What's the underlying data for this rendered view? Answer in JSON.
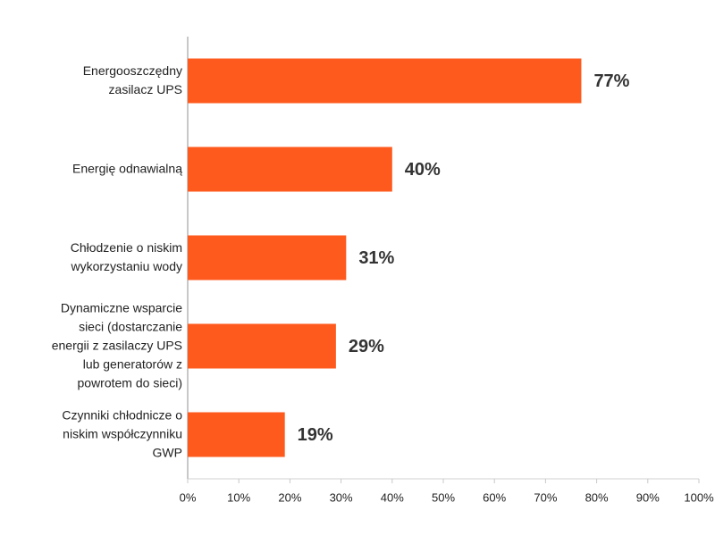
{
  "chart_data": {
    "type": "hbar",
    "categories": [
      "Energooszczędny zasilacz UPS",
      "Energię odnawialną",
      "Chłodzenie o niskim wykorzystaniu wody",
      "Dynamiczne wsparcie sieci (dostarczanie energii z zasilaczy UPS lub generatorów z powrotem do sieci)",
      "Czynniki chłodnicze o niskim współczynniku GWP"
    ],
    "values": [
      77,
      40,
      31,
      29,
      19
    ],
    "value_labels": [
      "77%",
      "40%",
      "31%",
      "29%",
      "19%"
    ],
    "color": "#fe5a1d",
    "xlim": [
      0,
      100
    ],
    "xticks": [
      {
        "value": 0,
        "label": "0%"
      },
      {
        "value": 10,
        "label": "10%"
      },
      {
        "value": 20,
        "label": "20%"
      },
      {
        "value": 30,
        "label": "30%"
      },
      {
        "value": 40,
        "label": "40%"
      },
      {
        "value": 50,
        "label": "50%"
      },
      {
        "value": 60,
        "label": "60%"
      },
      {
        "value": 70,
        "label": "70%"
      },
      {
        "value": 80,
        "label": "80%"
      },
      {
        "value": 90,
        "label": "90%"
      },
      {
        "value": 100,
        "label": "100%"
      }
    ]
  }
}
